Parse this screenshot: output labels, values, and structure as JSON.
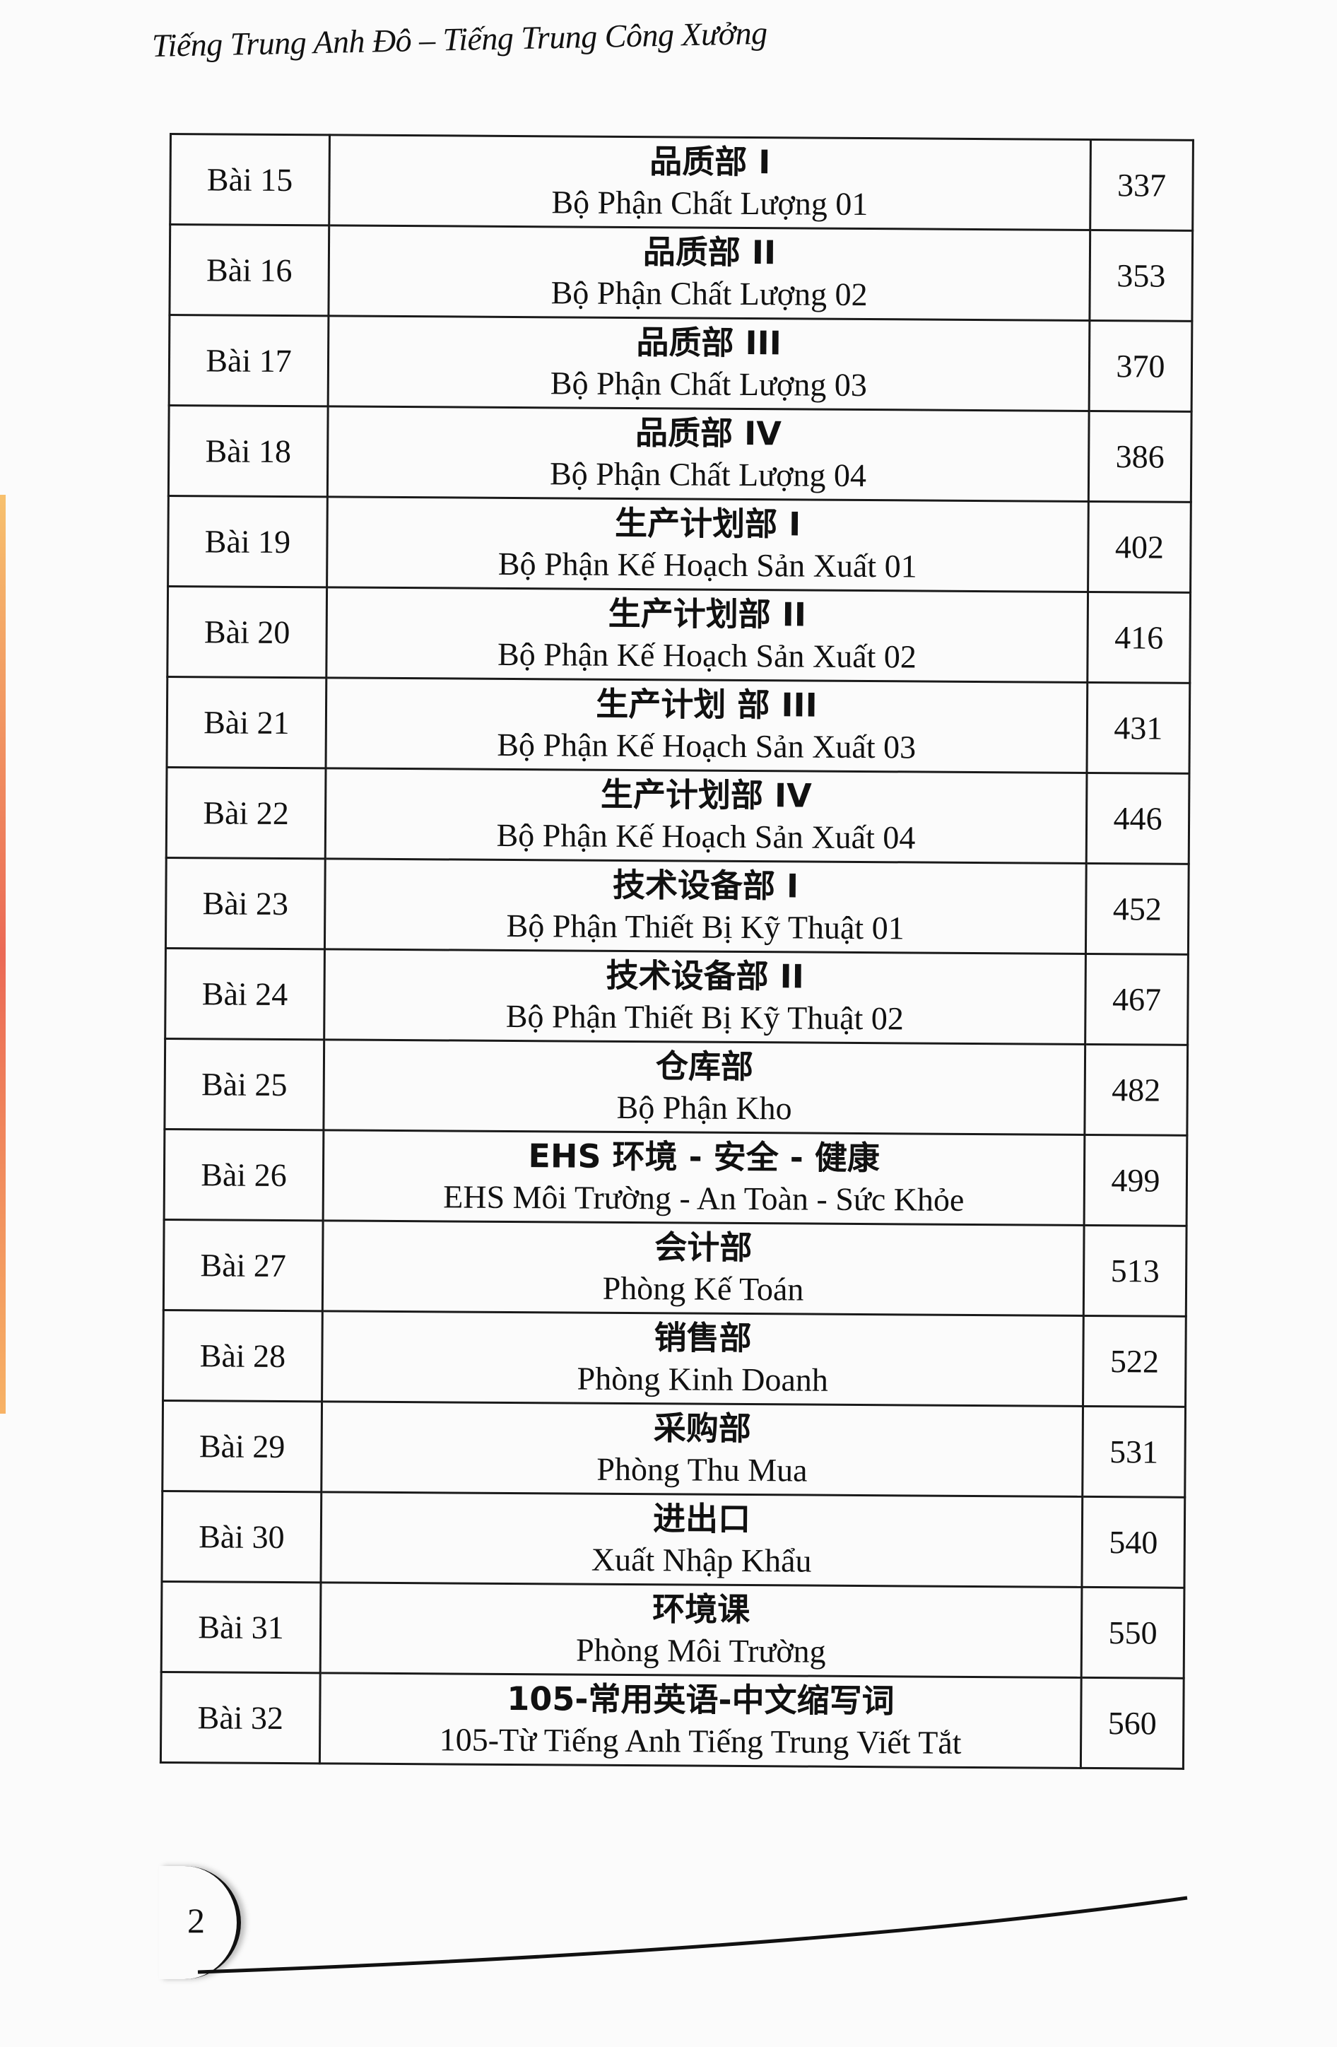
{
  "header": {
    "title": "Tiếng Trung Anh Đô – Tiếng Trung Công Xưởng"
  },
  "toc": [
    {
      "lesson": "Bài 15",
      "zh": "品质部 I",
      "vi": "Bộ Phận Chất Lượng 01",
      "page": "337"
    },
    {
      "lesson": "Bài 16",
      "zh": "品质部 II",
      "vi": "Bộ Phận Chất Lượng 02",
      "page": "353"
    },
    {
      "lesson": "Bài 17",
      "zh": "品质部 III",
      "vi": "Bộ Phận Chất Lượng 03",
      "page": "370"
    },
    {
      "lesson": "Bài 18",
      "zh": "品质部 IV",
      "vi": "Bộ Phận Chất Lượng 04",
      "page": "386"
    },
    {
      "lesson": "Bài 19",
      "zh": "生产计划部 I",
      "vi": "Bộ Phận Kế Hoạch Sản Xuất 01",
      "page": "402"
    },
    {
      "lesson": "Bài 20",
      "zh": "生产计划部 II",
      "vi": "Bộ Phận Kế Hoạch Sản Xuất 02",
      "page": "416"
    },
    {
      "lesson": "Bài 21",
      "zh": "生产计划 部 III",
      "vi": "Bộ Phận Kế Hoạch Sản Xuất 03",
      "page": "431"
    },
    {
      "lesson": "Bài 22",
      "zh": "生产计划部 IV",
      "vi": "Bộ Phận Kế Hoạch Sản Xuất 04",
      "page": "446"
    },
    {
      "lesson": "Bài 23",
      "zh": "技术设备部 I",
      "vi": "Bộ Phận Thiết Bị Kỹ Thuật 01",
      "page": "452"
    },
    {
      "lesson": "Bài 24",
      "zh": "技术设备部 II",
      "vi": "Bộ Phận Thiết Bị Kỹ Thuật 02",
      "page": "467"
    },
    {
      "lesson": "Bài 25",
      "zh": "仓库部",
      "vi": "Bộ Phận Kho",
      "page": "482"
    },
    {
      "lesson": "Bài 26",
      "zh": "EHS 环境 - 安全 - 健康",
      "vi": "EHS Môi Trường - An Toàn - Sức Khỏe",
      "page": "499"
    },
    {
      "lesson": "Bài 27",
      "zh": "会计部",
      "vi": "Phòng Kế Toán",
      "page": "513"
    },
    {
      "lesson": "Bài 28",
      "zh": "销售部",
      "vi": "Phòng Kinh Doanh",
      "page": "522"
    },
    {
      "lesson": "Bài 29",
      "zh": "采购部",
      "vi": "Phòng Thu Mua",
      "page": "531"
    },
    {
      "lesson": "Bài 30",
      "zh": "进出口",
      "vi": "Xuất Nhập Khẩu",
      "page": "540"
    },
    {
      "lesson": "Bài 31",
      "zh": "环境课",
      "vi": "Phòng Môi Trường",
      "page": "550"
    },
    {
      "lesson": "Bài 32",
      "zh": "105-常用英语-中文缩写词",
      "vi": "105-Từ Tiếng Anh Tiếng Trung Viết Tắt",
      "page": "560"
    }
  ],
  "footer": {
    "page_number": "2"
  }
}
